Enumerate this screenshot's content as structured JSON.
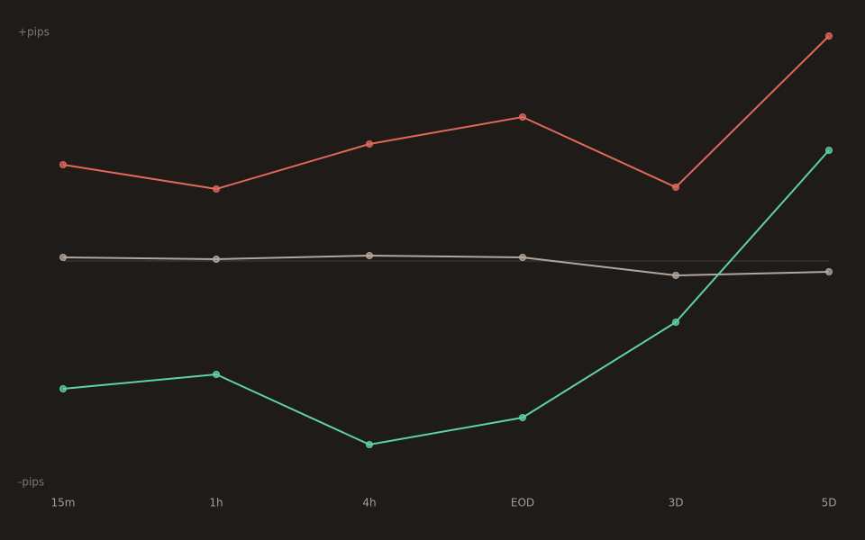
{
  "chart_data": {
    "type": "line",
    "y_top_label": "+pips",
    "y_bottom_label": "-pips",
    "categories": [
      "15m",
      "1h",
      "4h",
      "EOD",
      "3D",
      "5D"
    ],
    "series": [
      {
        "color": "#e0695c",
        "values": [
          42.8,
          32,
          52,
          64,
          32.8,
          100
        ]
      },
      {
        "color": "#b3a79d",
        "values": [
          1.6,
          0.8,
          2.4,
          1.6,
          -6.4,
          -4.8
        ]
      },
      {
        "color": "#5fd1aa",
        "values": [
          -56.8,
          -50.4,
          -81.6,
          -69.6,
          -27.2,
          49.2
        ]
      }
    ],
    "ylim": [
      -100,
      100
    ],
    "reference_line": 0
  }
}
